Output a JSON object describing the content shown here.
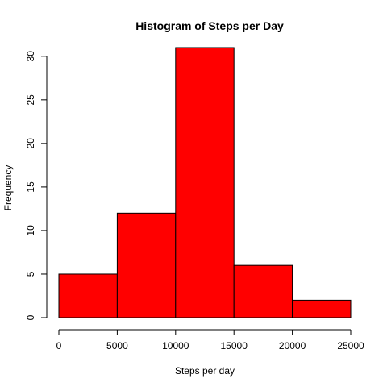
{
  "chart_data": {
    "type": "bar",
    "title": "Histogram of Steps per Day",
    "xlabel": "Steps per day",
    "ylabel": "Frequency",
    "bins": [
      {
        "start": 0,
        "end": 5000,
        "count": 5
      },
      {
        "start": 5000,
        "end": 10000,
        "count": 12
      },
      {
        "start": 10000,
        "end": 15000,
        "count": 31
      },
      {
        "start": 15000,
        "end": 20000,
        "count": 6
      },
      {
        "start": 20000,
        "end": 25000,
        "count": 2
      }
    ],
    "xlim": [
      0,
      25000
    ],
    "ylim": [
      0,
      31
    ],
    "xticks": [
      0,
      5000,
      10000,
      15000,
      20000,
      25000
    ],
    "yticks": [
      0,
      5,
      10,
      15,
      20,
      25,
      30
    ],
    "bar_color": "#ff0000",
    "grid": false,
    "legend": "none"
  }
}
